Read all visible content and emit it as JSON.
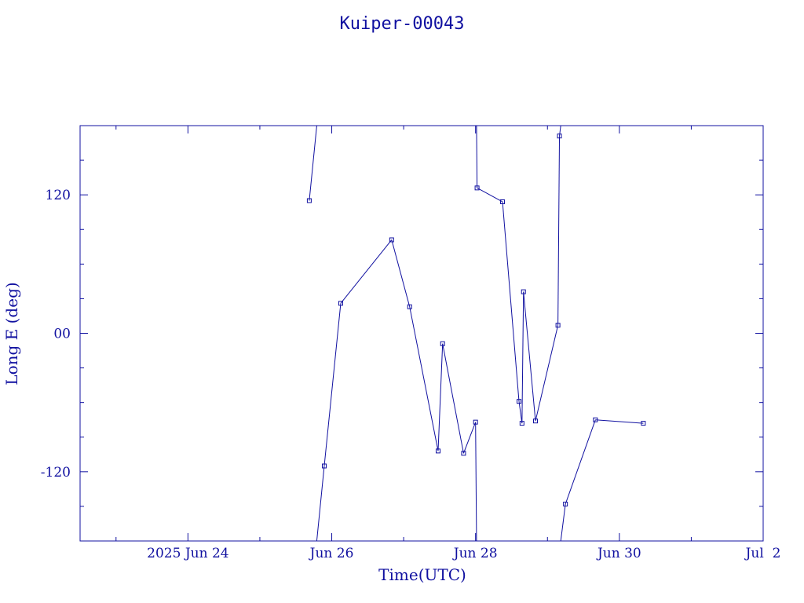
{
  "chart_data": {
    "type": "line",
    "title": "Kuiper-00043",
    "xlabel": "Time(UTC)",
    "ylabel": "Long E (deg)",
    "x_ticks": [
      "2025 Jun 24",
      "Jun 26",
      "Jun 28",
      "Jun 30",
      "Jul  2"
    ],
    "y_ticks": [
      "120",
      "00",
      "-120"
    ],
    "xlim": [
      "2025-06-22T12:00",
      "2025-07-02T00:00"
    ],
    "ylim": [
      -180,
      180
    ],
    "wrap_longitude": true,
    "grid": false,
    "color": "#1010a0",
    "series": [
      {
        "points": [
          [
            "2025-06-25T16:30",
            115
          ],
          [
            "2025-06-25T21:30",
            -115
          ],
          [
            "2025-06-26T03:00",
            26
          ],
          [
            "2025-06-26T20:00",
            81
          ],
          [
            "2025-06-27T02:00",
            23
          ],
          [
            "2025-06-27T11:30",
            -102
          ],
          [
            "2025-06-27T13:00",
            -9
          ],
          [
            "2025-06-27T20:00",
            -104
          ],
          [
            "2025-06-28T00:00",
            -77
          ],
          [
            "2025-06-28T00:30",
            126
          ],
          [
            "2025-06-28T09:00",
            114
          ],
          [
            "2025-06-28T14:30",
            -59
          ],
          [
            "2025-06-28T15:30",
            -78
          ],
          [
            "2025-06-28T16:00",
            36
          ],
          [
            "2025-06-28T20:00",
            -76
          ],
          [
            "2025-06-29T03:30",
            7
          ],
          [
            "2025-06-29T04:00",
            171
          ],
          [
            "2025-06-29T06:00",
            -148
          ],
          [
            "2025-06-29T16:00",
            -75
          ],
          [
            "2025-06-30T08:00",
            -78
          ]
        ]
      }
    ]
  }
}
